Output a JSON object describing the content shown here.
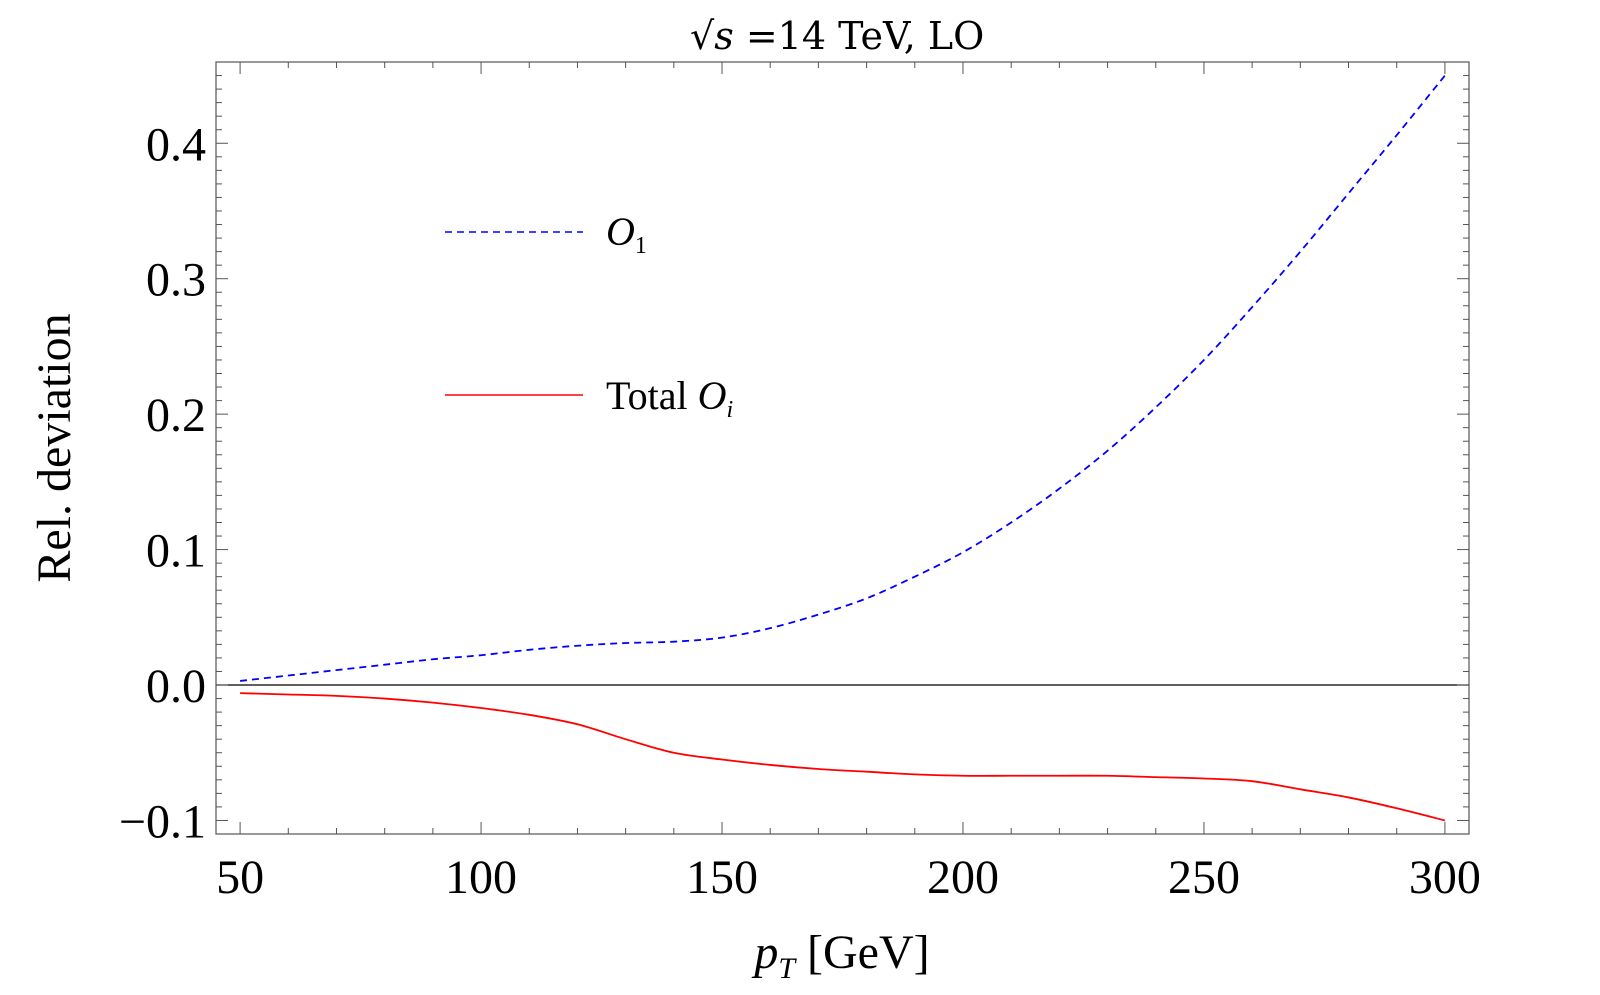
{
  "chart_data": {
    "type": "line",
    "title": "√s =14 TeV, LO",
    "title_parts": {
      "radical": "√",
      "var": "s",
      "rest": " =14 TeV, LO"
    },
    "xlabel": "p_T [GeV]",
    "xlabel_parts": {
      "var": "p",
      "sub": "T",
      "rest": " [GeV]"
    },
    "ylabel": "Rel. deviation",
    "xlim": [
      45,
      305
    ],
    "ylim": [
      -0.11,
      0.46
    ],
    "x_ticks": [
      50,
      100,
      150,
      200,
      250,
      300
    ],
    "x_tick_labels": [
      "50",
      "100",
      "150",
      "200",
      "250",
      "300"
    ],
    "y_ticks": [
      -0.1,
      0.0,
      0.1,
      0.2,
      0.3,
      0.4
    ],
    "y_tick_labels": [
      "−0.1",
      "0.0",
      "0.1",
      "0.2",
      "0.3",
      "0.4"
    ],
    "zero_line": true,
    "grid": false,
    "legend_position": "upper-left",
    "series": [
      {
        "name": "O_1",
        "legend_label": {
          "var": "O",
          "sub": "1",
          "prefix": ""
        },
        "style": "dashed",
        "color": "#0000ff",
        "x": [
          50,
          60,
          70,
          80,
          90,
          100,
          110,
          120,
          130,
          140,
          150,
          160,
          170,
          180,
          190,
          200,
          210,
          220,
          230,
          240,
          250,
          260,
          270,
          280,
          290,
          300
        ],
        "y": [
          0.003,
          0.007,
          0.011,
          0.015,
          0.019,
          0.022,
          0.026,
          0.029,
          0.031,
          0.032,
          0.035,
          0.042,
          0.052,
          0.064,
          0.08,
          0.098,
          0.12,
          0.145,
          0.173,
          0.205,
          0.24,
          0.279,
          0.32,
          0.363,
          0.406,
          0.45
        ]
      },
      {
        "name": "Total O_i",
        "legend_label": {
          "var": "O",
          "sub": "i",
          "prefix": "Total "
        },
        "style": "solid",
        "color": "#ff0000",
        "x": [
          50,
          60,
          70,
          80,
          90,
          100,
          110,
          120,
          130,
          140,
          150,
          160,
          170,
          180,
          190,
          200,
          210,
          220,
          230,
          240,
          250,
          260,
          270,
          280,
          290,
          300
        ],
        "y": [
          -0.006,
          -0.007,
          -0.008,
          -0.01,
          -0.013,
          -0.017,
          -0.022,
          -0.029,
          -0.04,
          -0.05,
          -0.055,
          -0.059,
          -0.062,
          -0.064,
          -0.066,
          -0.067,
          -0.067,
          -0.067,
          -0.067,
          -0.068,
          -0.069,
          -0.071,
          -0.077,
          -0.083,
          -0.091,
          -0.1
        ]
      }
    ]
  }
}
